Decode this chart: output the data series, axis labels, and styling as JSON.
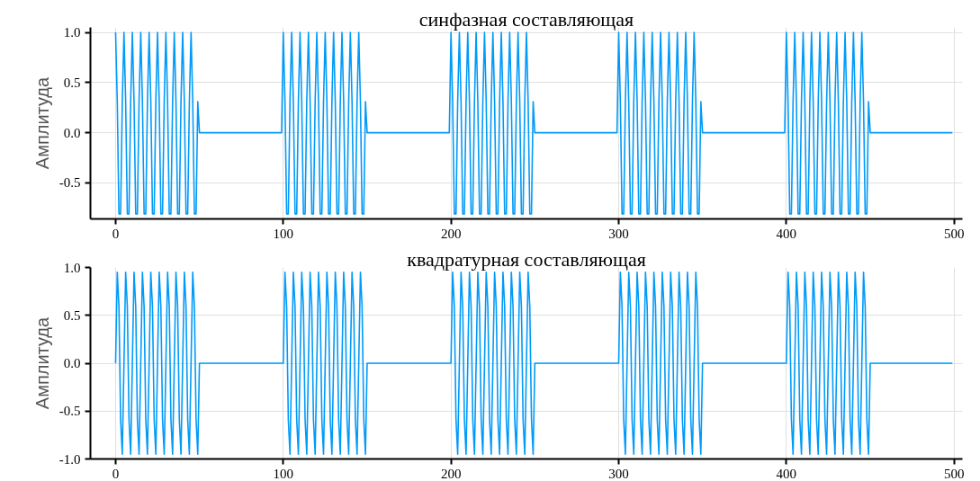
{
  "chart_data": [
    {
      "type": "line",
      "title": "синфазная составляющая",
      "ylabel": "Амплитуда",
      "grid": true,
      "xlim": [
        -15,
        505
      ],
      "xticks": [
        0,
        100,
        200,
        300,
        400,
        500
      ],
      "ylim": [
        -0.86,
        1.05
      ],
      "yticks": [
        {
          "value": -0.5,
          "label": "-0.5"
        },
        {
          "value": 0,
          "label": "0.0"
        },
        {
          "value": 0.5,
          "label": "0.5"
        },
        {
          "value": 1,
          "label": "1.0"
        }
      ],
      "x": [
        0,
        1,
        2,
        3,
        4,
        5,
        6,
        7,
        8,
        9,
        10,
        11,
        12,
        13,
        14,
        15,
        16,
        17,
        18,
        19,
        20,
        21,
        22,
        23,
        24,
        25,
        26,
        27,
        28,
        29,
        30,
        31,
        32,
        33,
        34,
        35,
        36,
        37,
        38,
        39,
        40,
        41,
        42,
        43,
        44,
        45,
        46,
        47,
        48,
        49,
        50,
        99,
        100,
        101,
        102,
        103,
        104,
        105,
        106,
        107,
        108,
        109,
        110,
        111,
        112,
        113,
        114,
        115,
        116,
        117,
        118,
        119,
        120,
        121,
        122,
        123,
        124,
        125,
        126,
        127,
        128,
        129,
        130,
        131,
        132,
        133,
        134,
        135,
        136,
        137,
        138,
        139,
        140,
        141,
        142,
        143,
        144,
        145,
        146,
        147,
        148,
        149,
        150,
        199,
        200,
        201,
        202,
        203,
        204,
        205,
        206,
        207,
        208,
        209,
        210,
        211,
        212,
        213,
        214,
        215,
        216,
        217,
        218,
        219,
        220,
        221,
        222,
        223,
        224,
        225,
        226,
        227,
        228,
        229,
        230,
        231,
        232,
        233,
        234,
        235,
        236,
        237,
        238,
        239,
        240,
        241,
        242,
        243,
        244,
        245,
        246,
        247,
        248,
        249,
        250,
        299,
        300,
        301,
        302,
        303,
        304,
        305,
        306,
        307,
        308,
        309,
        310,
        311,
        312,
        313,
        314,
        315,
        316,
        317,
        318,
        319,
        320,
        321,
        322,
        323,
        324,
        325,
        326,
        327,
        328,
        329,
        330,
        331,
        332,
        333,
        334,
        335,
        336,
        337,
        338,
        339,
        340,
        341,
        342,
        343,
        344,
        345,
        346,
        347,
        348,
        349,
        350,
        399,
        400,
        401,
        402,
        403,
        404,
        405,
        406,
        407,
        408,
        409,
        410,
        411,
        412,
        413,
        414,
        415,
        416,
        417,
        418,
        419,
        420,
        421,
        422,
        423,
        424,
        425,
        426,
        427,
        428,
        429,
        430,
        431,
        432,
        433,
        434,
        435,
        436,
        437,
        438,
        439,
        440,
        441,
        442,
        443,
        444,
        445,
        446,
        447,
        448,
        449,
        450,
        499
      ],
      "series": [
        {
          "color": "#009af9",
          "values": [
            1,
            0.31,
            -0.81,
            -0.81,
            0.31,
            1,
            0.31,
            -0.81,
            -0.81,
            0.31,
            1,
            0.31,
            -0.81,
            -0.81,
            0.31,
            1,
            0.31,
            -0.81,
            -0.81,
            0.31,
            1,
            0.31,
            -0.81,
            -0.81,
            0.31,
            1,
            0.31,
            -0.81,
            -0.81,
            0.31,
            1,
            0.31,
            -0.81,
            -0.81,
            0.31,
            1,
            0.31,
            -0.81,
            -0.81,
            0.31,
            1,
            0.31,
            -0.81,
            -0.81,
            0.31,
            1,
            0.31,
            -0.81,
            -0.81,
            0.31,
            0,
            0,
            1,
            0.31,
            -0.81,
            -0.81,
            0.31,
            1,
            0.31,
            -0.81,
            -0.81,
            0.31,
            1,
            0.31,
            -0.81,
            -0.81,
            0.31,
            1,
            0.31,
            -0.81,
            -0.81,
            0.31,
            1,
            0.31,
            -0.81,
            -0.81,
            0.31,
            1,
            0.31,
            -0.81,
            -0.81,
            0.31,
            1,
            0.31,
            -0.81,
            -0.81,
            0.31,
            1,
            0.31,
            -0.81,
            -0.81,
            0.31,
            1,
            0.31,
            -0.81,
            -0.81,
            0.31,
            1,
            0.31,
            -0.81,
            -0.81,
            0.31,
            0,
            0,
            1,
            0.31,
            -0.81,
            -0.81,
            0.31,
            1,
            0.31,
            -0.81,
            -0.81,
            0.31,
            1,
            0.31,
            -0.81,
            -0.81,
            0.31,
            1,
            0.31,
            -0.81,
            -0.81,
            0.31,
            1,
            0.31,
            -0.81,
            -0.81,
            0.31,
            1,
            0.31,
            -0.81,
            -0.81,
            0.31,
            1,
            0.31,
            -0.81,
            -0.81,
            0.31,
            1,
            0.31,
            -0.81,
            -0.81,
            0.31,
            1,
            0.31,
            -0.81,
            -0.81,
            0.31,
            1,
            0.31,
            -0.81,
            -0.81,
            0.31,
            0,
            0,
            1,
            0.31,
            -0.81,
            -0.81,
            0.31,
            1,
            0.31,
            -0.81,
            -0.81,
            0.31,
            1,
            0.31,
            -0.81,
            -0.81,
            0.31,
            1,
            0.31,
            -0.81,
            -0.81,
            0.31,
            1,
            0.31,
            -0.81,
            -0.81,
            0.31,
            1,
            0.31,
            -0.81,
            -0.81,
            0.31,
            1,
            0.31,
            -0.81,
            -0.81,
            0.31,
            1,
            0.31,
            -0.81,
            -0.81,
            0.31,
            1,
            0.31,
            -0.81,
            -0.81,
            0.31,
            1,
            0.31,
            -0.81,
            -0.81,
            0.31,
            0,
            0,
            1,
            0.31,
            -0.81,
            -0.81,
            0.31,
            1,
            0.31,
            -0.81,
            -0.81,
            0.31,
            1,
            0.31,
            -0.81,
            -0.81,
            0.31,
            1,
            0.31,
            -0.81,
            -0.81,
            0.31,
            1,
            0.31,
            -0.81,
            -0.81,
            0.31,
            1,
            0.31,
            -0.81,
            -0.81,
            0.31,
            1,
            0.31,
            -0.81,
            -0.81,
            0.31,
            1,
            0.31,
            -0.81,
            -0.81,
            0.31,
            1,
            0.31,
            -0.81,
            -0.81,
            0.31,
            1,
            0.31,
            -0.81,
            -0.81,
            0.31,
            0,
            0
          ]
        }
      ]
    },
    {
      "type": "line",
      "title": "квадратурная составляющая",
      "ylabel": "Амплитуда",
      "grid": true,
      "xlim": [
        -15,
        505
      ],
      "xticks": [
        0,
        100,
        200,
        300,
        400,
        500
      ],
      "ylim": [
        -1.0,
        1.0
      ],
      "yticks": [
        {
          "value": -1,
          "label": "-1.0"
        },
        {
          "value": -0.5,
          "label": "-0.5"
        },
        {
          "value": 0,
          "label": "0.0"
        },
        {
          "value": 0.5,
          "label": "0.5"
        },
        {
          "value": 1,
          "label": "1.0"
        }
      ],
      "x": [
        0,
        1,
        2,
        3,
        4,
        5,
        6,
        7,
        8,
        9,
        10,
        11,
        12,
        13,
        14,
        15,
        16,
        17,
        18,
        19,
        20,
        21,
        22,
        23,
        24,
        25,
        26,
        27,
        28,
        29,
        30,
        31,
        32,
        33,
        34,
        35,
        36,
        37,
        38,
        39,
        40,
        41,
        42,
        43,
        44,
        45,
        46,
        47,
        48,
        49,
        50,
        99,
        100,
        101,
        102,
        103,
        104,
        105,
        106,
        107,
        108,
        109,
        110,
        111,
        112,
        113,
        114,
        115,
        116,
        117,
        118,
        119,
        120,
        121,
        122,
        123,
        124,
        125,
        126,
        127,
        128,
        129,
        130,
        131,
        132,
        133,
        134,
        135,
        136,
        137,
        138,
        139,
        140,
        141,
        142,
        143,
        144,
        145,
        146,
        147,
        148,
        149,
        150,
        199,
        200,
        201,
        202,
        203,
        204,
        205,
        206,
        207,
        208,
        209,
        210,
        211,
        212,
        213,
        214,
        215,
        216,
        217,
        218,
        219,
        220,
        221,
        222,
        223,
        224,
        225,
        226,
        227,
        228,
        229,
        230,
        231,
        232,
        233,
        234,
        235,
        236,
        237,
        238,
        239,
        240,
        241,
        242,
        243,
        244,
        245,
        246,
        247,
        248,
        249,
        250,
        299,
        300,
        301,
        302,
        303,
        304,
        305,
        306,
        307,
        308,
        309,
        310,
        311,
        312,
        313,
        314,
        315,
        316,
        317,
        318,
        319,
        320,
        321,
        322,
        323,
        324,
        325,
        326,
        327,
        328,
        329,
        330,
        331,
        332,
        333,
        334,
        335,
        336,
        337,
        338,
        339,
        340,
        341,
        342,
        343,
        344,
        345,
        346,
        347,
        348,
        349,
        350,
        399,
        400,
        401,
        402,
        403,
        404,
        405,
        406,
        407,
        408,
        409,
        410,
        411,
        412,
        413,
        414,
        415,
        416,
        417,
        418,
        419,
        420,
        421,
        422,
        423,
        424,
        425,
        426,
        427,
        428,
        429,
        430,
        431,
        432,
        433,
        434,
        435,
        436,
        437,
        438,
        439,
        440,
        441,
        442,
        443,
        444,
        445,
        446,
        447,
        448,
        449,
        450,
        499
      ],
      "series": [
        {
          "color": "#009af9",
          "values": [
            0,
            0.95,
            0.59,
            -0.59,
            -0.95,
            0,
            0.95,
            0.59,
            -0.59,
            -0.95,
            0,
            0.95,
            0.59,
            -0.59,
            -0.95,
            0,
            0.95,
            0.59,
            -0.59,
            -0.95,
            0,
            0.95,
            0.59,
            -0.59,
            -0.95,
            0,
            0.95,
            0.59,
            -0.59,
            -0.95,
            0,
            0.95,
            0.59,
            -0.59,
            -0.95,
            0,
            0.95,
            0.59,
            -0.59,
            -0.95,
            0,
            0.95,
            0.59,
            -0.59,
            -0.95,
            0,
            0.95,
            0.59,
            -0.59,
            -0.95,
            0,
            0,
            0,
            0.95,
            0.59,
            -0.59,
            -0.95,
            0,
            0.95,
            0.59,
            -0.59,
            -0.95,
            0,
            0.95,
            0.59,
            -0.59,
            -0.95,
            0,
            0.95,
            0.59,
            -0.59,
            -0.95,
            0,
            0.95,
            0.59,
            -0.59,
            -0.95,
            0,
            0.95,
            0.59,
            -0.59,
            -0.95,
            0,
            0.95,
            0.59,
            -0.59,
            -0.95,
            0,
            0.95,
            0.59,
            -0.59,
            -0.95,
            0,
            0.95,
            0.59,
            -0.59,
            -0.95,
            0,
            0.95,
            0.59,
            -0.59,
            -0.95,
            0,
            0,
            0,
            0.95,
            0.59,
            -0.59,
            -0.95,
            0,
            0.95,
            0.59,
            -0.59,
            -0.95,
            0,
            0.95,
            0.59,
            -0.59,
            -0.95,
            0,
            0.95,
            0.59,
            -0.59,
            -0.95,
            0,
            0.95,
            0.59,
            -0.59,
            -0.95,
            0,
            0.95,
            0.59,
            -0.59,
            -0.95,
            0,
            0.95,
            0.59,
            -0.59,
            -0.95,
            0,
            0.95,
            0.59,
            -0.59,
            -0.95,
            0,
            0.95,
            0.59,
            -0.59,
            -0.95,
            0,
            0.95,
            0.59,
            -0.59,
            -0.95,
            0,
            0,
            0,
            0.95,
            0.59,
            -0.59,
            -0.95,
            0,
            0.95,
            0.59,
            -0.59,
            -0.95,
            0,
            0.95,
            0.59,
            -0.59,
            -0.95,
            0,
            0.95,
            0.59,
            -0.59,
            -0.95,
            0,
            0.95,
            0.59,
            -0.59,
            -0.95,
            0,
            0.95,
            0.59,
            -0.59,
            -0.95,
            0,
            0.95,
            0.59,
            -0.59,
            -0.95,
            0,
            0.95,
            0.59,
            -0.59,
            -0.95,
            0,
            0.95,
            0.59,
            -0.59,
            -0.95,
            0,
            0.95,
            0.59,
            -0.59,
            -0.95,
            0,
            0,
            0,
            0.95,
            0.59,
            -0.59,
            -0.95,
            0,
            0.95,
            0.59,
            -0.59,
            -0.95,
            0,
            0.95,
            0.59,
            -0.59,
            -0.95,
            0,
            0.95,
            0.59,
            -0.59,
            -0.95,
            0,
            0.95,
            0.59,
            -0.59,
            -0.95,
            0,
            0.95,
            0.59,
            -0.59,
            -0.95,
            0,
            0.95,
            0.59,
            -0.59,
            -0.95,
            0,
            0.95,
            0.59,
            -0.59,
            -0.95,
            0,
            0.95,
            0.59,
            -0.59,
            -0.95,
            0,
            0.95,
            0.59,
            -0.59,
            -0.95,
            0,
            0
          ]
        }
      ]
    }
  ]
}
